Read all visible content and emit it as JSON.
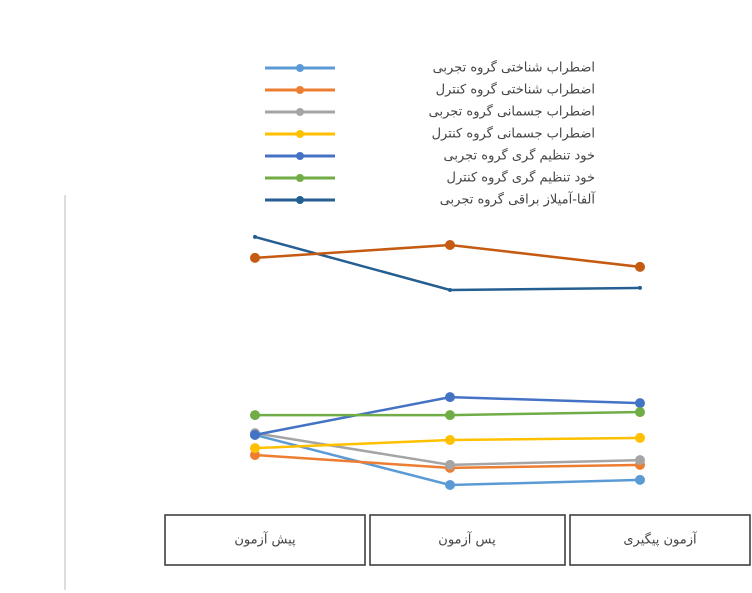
{
  "chart_data": {
    "type": "line",
    "categories": [
      "پیش آزمون",
      "پس آزمون",
      "آزمون پیگیری"
    ],
    "ylim": [
      0,
      100
    ],
    "series": [
      {
        "name": "اضطراب شناختی گروه تجربی",
        "color": "#5b9bd5",
        "values": [
          21.7,
          5,
          6.7
        ]
      },
      {
        "name": "اضطراب شناختی گروه کنترل",
        "color": "#ed7d31",
        "values": [
          15,
          10.7,
          11.7
        ]
      },
      {
        "name": "اضطراب جسمانی گروه تجربی",
        "color": "#a5a5a5",
        "values": [
          22.3,
          11.7,
          13.3
        ]
      },
      {
        "name": "اضطراب جسمانی گروه کنترل",
        "color": "#ffc000",
        "values": [
          17.3,
          20,
          20.7
        ]
      },
      {
        "name": "خود تنظیم گری گروه تجربی",
        "color": "#4472c4",
        "values": [
          21.7,
          34.3,
          32.3
        ]
      },
      {
        "name": "خود تنظیم گری گروه کنترل",
        "color": "#70ad47",
        "values": [
          28.3,
          28.3,
          29.3
        ]
      },
      {
        "name": "آلفا-آمیلاز براقی گروه تجربی",
        "color": "#255e91",
        "values": [
          87.7,
          70,
          70.7
        ]
      },
      {
        "color": "#c55a11",
        "values": [
          80.7,
          85,
          77.7
        ]
      }
    ]
  }
}
